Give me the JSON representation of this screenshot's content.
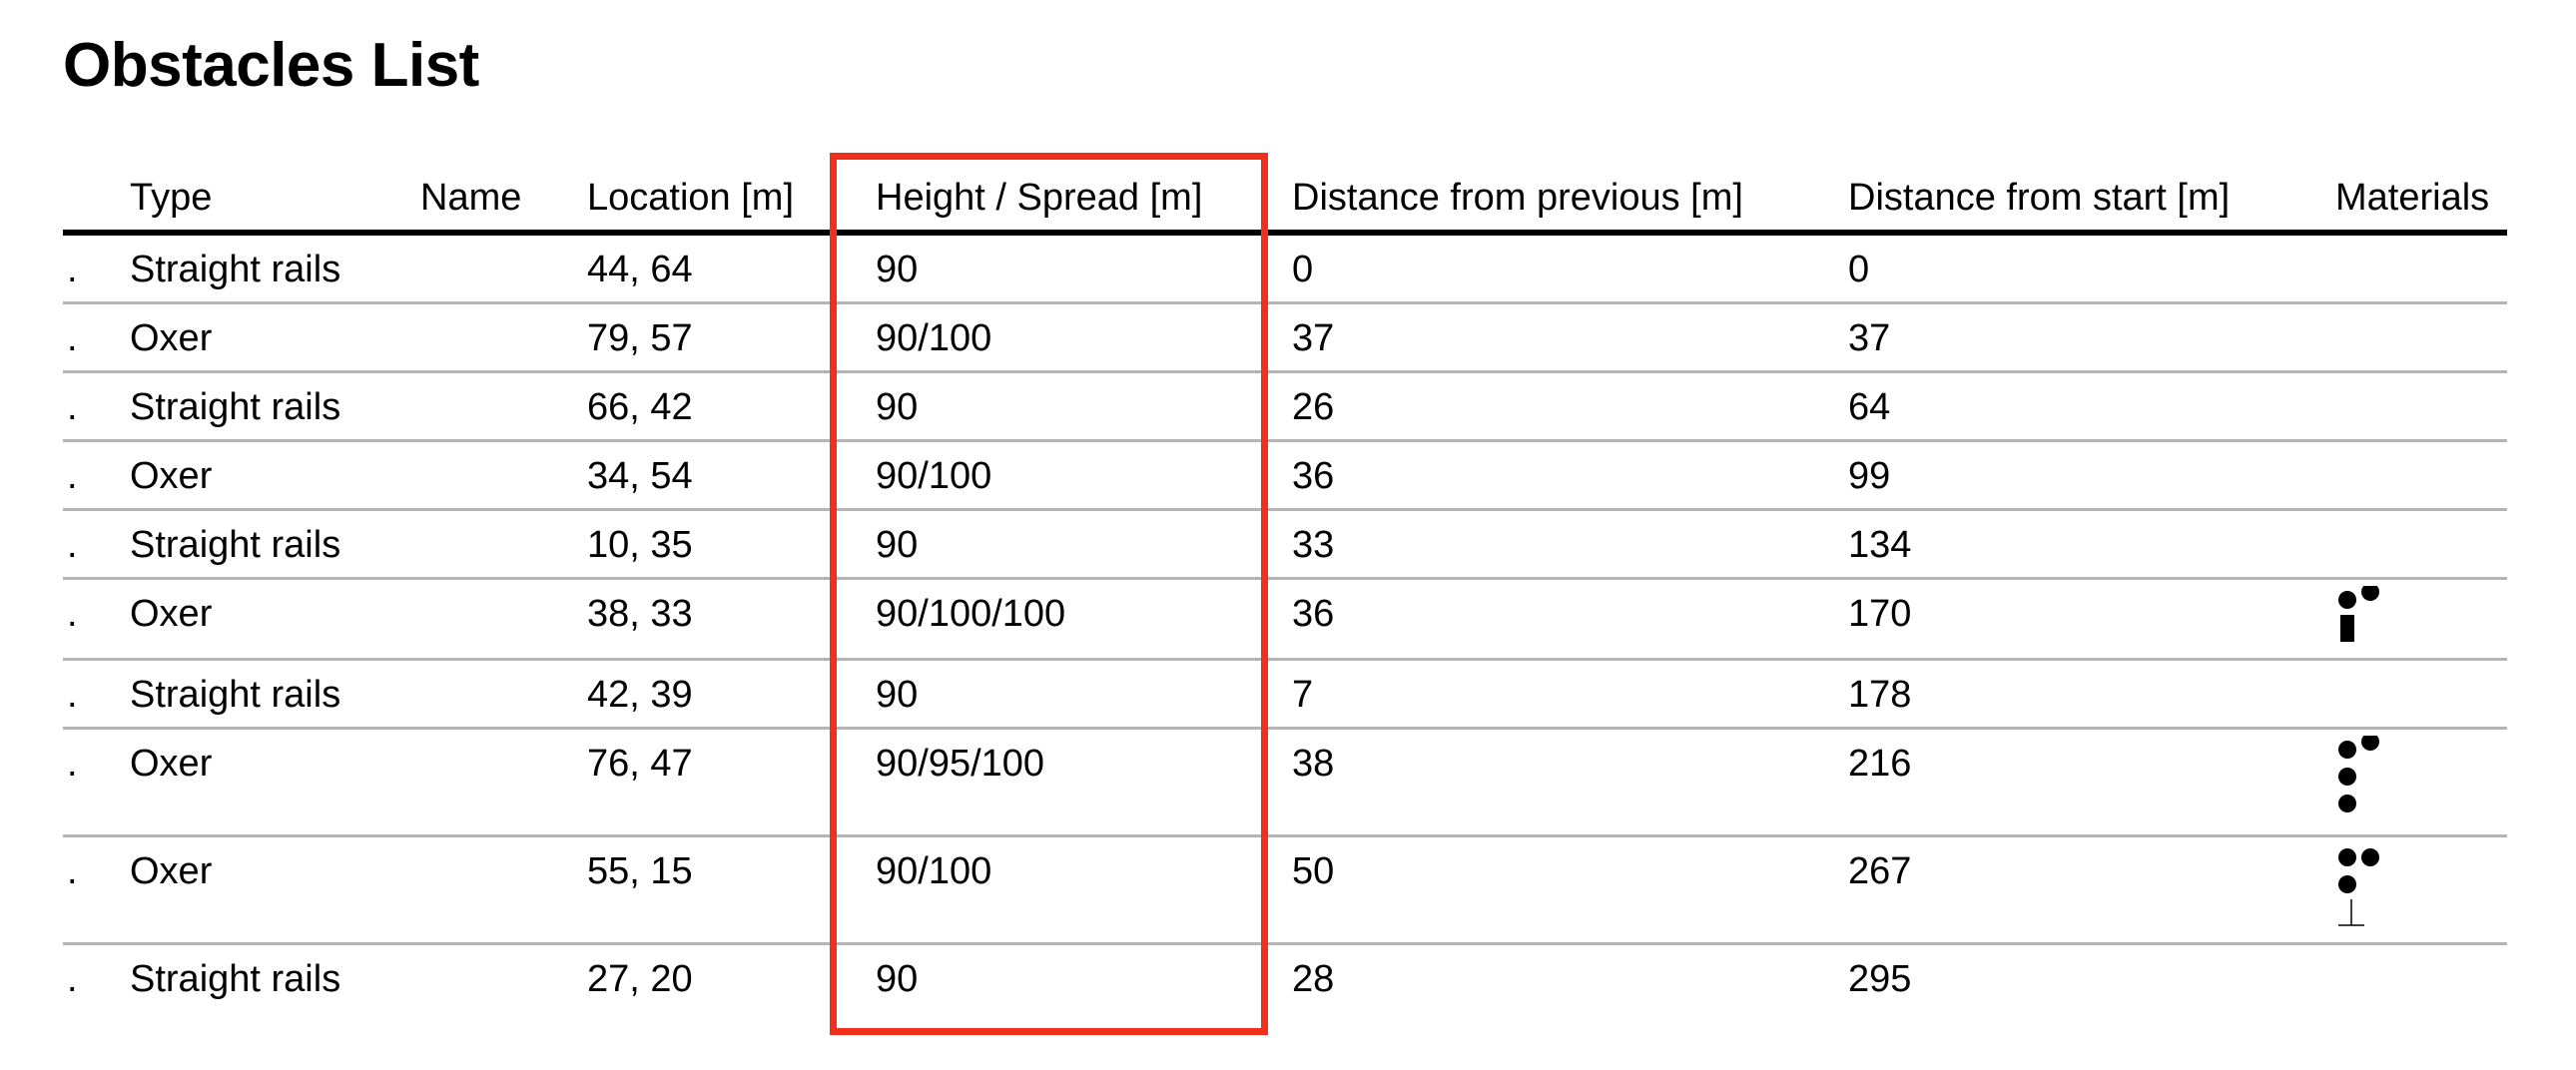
{
  "title": "Obstacles List",
  "columns": [
    "",
    "Type",
    "Name",
    "Location [m]",
    "Height / Spread [m]",
    "Distance from previous [m]",
    "Distance from start [m]",
    "Materials"
  ],
  "rows": [
    {
      "marker": ".",
      "type": "Straight rails",
      "name": "",
      "location": "44, 64",
      "height": "90",
      "dist_prev": "0",
      "dist_start": "0",
      "materials": []
    },
    {
      "marker": ".",
      "type": "Oxer",
      "name": "",
      "location": "79, 57",
      "height": "90/100",
      "dist_prev": "37",
      "dist_start": "37",
      "materials": []
    },
    {
      "marker": ".",
      "type": "Straight rails",
      "name": "",
      "location": "66, 42",
      "height": "90",
      "dist_prev": "26",
      "dist_start": "64",
      "materials": []
    },
    {
      "marker": ".",
      "type": "Oxer",
      "name": "",
      "location": "34, 54",
      "height": "90/100",
      "dist_prev": "36",
      "dist_start": "99",
      "materials": []
    },
    {
      "marker": ".",
      "type": "Straight rails",
      "name": "",
      "location": "10, 35",
      "height": "90",
      "dist_prev": "33",
      "dist_start": "134",
      "materials": []
    },
    {
      "marker": ".",
      "type": "Oxer",
      "name": "",
      "location": "38, 33",
      "height": "90/100/100",
      "dist_prev": "36",
      "dist_start": "170",
      "materials": [
        [
          "dot",
          "dot-raised"
        ],
        [
          "plank"
        ]
      ]
    },
    {
      "marker": ".",
      "type": "Straight rails",
      "name": "",
      "location": "42, 39",
      "height": "90",
      "dist_prev": "7",
      "dist_start": "178",
      "materials": []
    },
    {
      "marker": ".",
      "type": "Oxer",
      "name": "",
      "location": "76, 47",
      "height": "90/95/100",
      "dist_prev": "38",
      "dist_start": "216",
      "materials": [
        [
          "dot",
          "dot-raised"
        ],
        [
          "dot"
        ],
        [
          "dot"
        ]
      ]
    },
    {
      "marker": ".",
      "type": "Oxer",
      "name": "",
      "location": "55, 15",
      "height": "90/100",
      "dist_prev": "50",
      "dist_start": "267",
      "materials": [
        [
          "dot",
          "dot"
        ],
        [
          "dot"
        ],
        [
          "stand"
        ]
      ]
    },
    {
      "marker": ".",
      "type": "Straight rails",
      "name": "",
      "location": "27, 20",
      "height": "90",
      "dist_prev": "28",
      "dist_start": "295",
      "materials": []
    }
  ],
  "highlight_color": "#f0301a"
}
